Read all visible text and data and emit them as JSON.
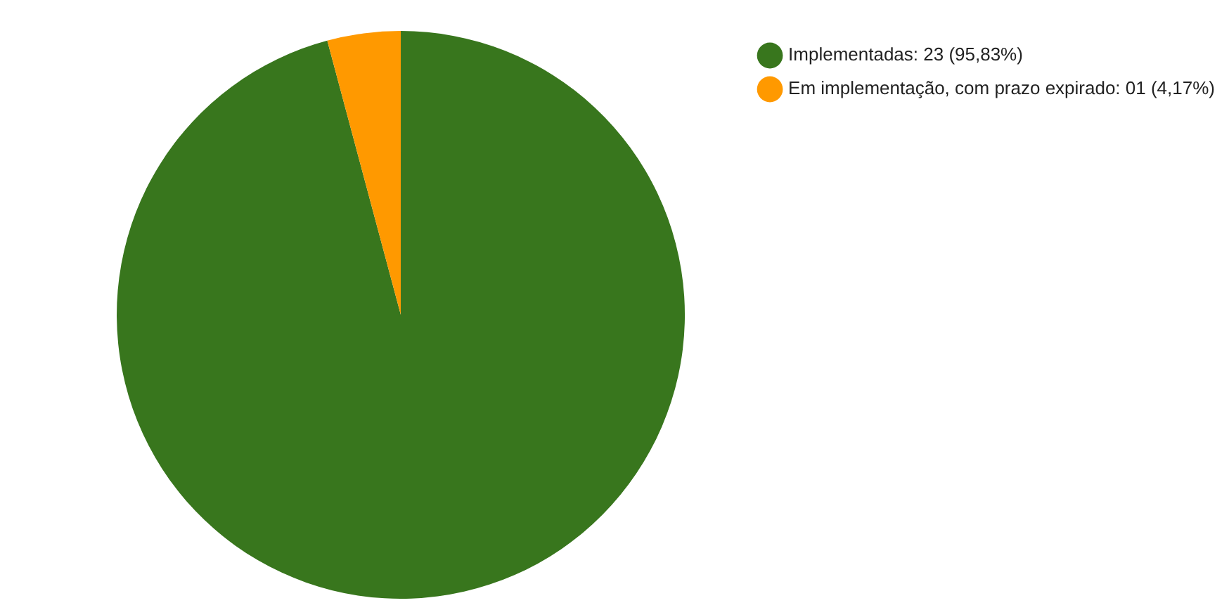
{
  "chart_data": {
    "type": "pie",
    "categories": [
      "Implementadas: 23 (95,83%)",
      "Em implementação, com prazo expirado: 01 (4,17%)"
    ],
    "values": [
      23,
      1
    ],
    "colors": [
      "#38761d",
      "#ff9900"
    ],
    "legend": "top right"
  }
}
